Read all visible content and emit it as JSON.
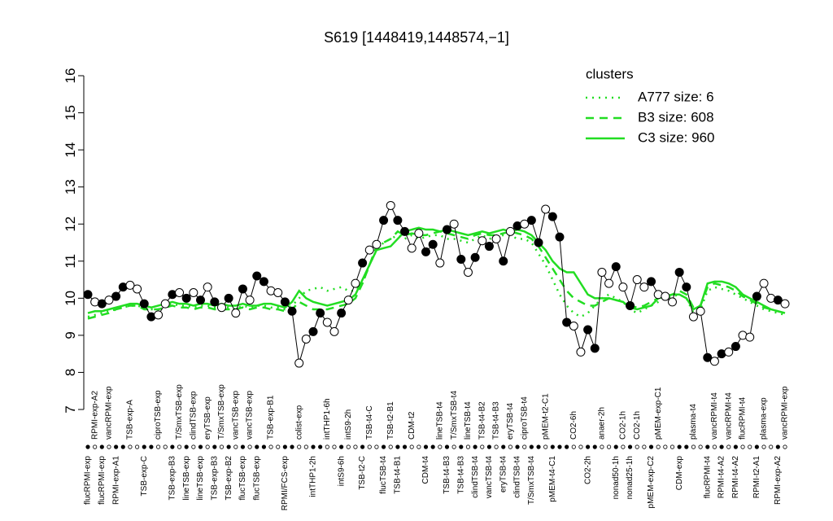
{
  "chart_data": {
    "type": "line",
    "title": "S619 [1448419,1448574,−1]",
    "categories": [
      "flucRPMI-exp",
      "RPMI-exp-A2",
      "flucRPMI-exp",
      "vancRPMI-exp",
      "RPMI-exp-A1",
      null,
      "TSB-exp-A",
      null,
      "TSB-exp-C",
      null,
      "ciproTSB-exp",
      null,
      "TSB-exp-B3",
      "T/SmxTSB-exp",
      "lineTSB-exp",
      "clindTSB-exp",
      "lineTSB-exp",
      "eryTSB-exp",
      "TSB-exp-B3",
      "T/SmxTSB-exp",
      "TSB-exp-B2",
      "vancTSB-exp",
      "flucTSB-exp",
      "vancTSB-exp",
      "flucTSB-exp",
      null,
      "TSB-exp-B1",
      null,
      "RPMI/FCS-exp",
      null,
      "colist-exp",
      null,
      "intTHP1-2h",
      null,
      "intTHP1-6h",
      null,
      "intS9-6h",
      "intS9-2h",
      null,
      "TSB-t2-C",
      "TSB-t4-C",
      null,
      "flucTSB-t4",
      "TSB-t2-B1",
      "TSB-t4-B1",
      null,
      "CDM-t2",
      null,
      "CDM-t4",
      null,
      "lineTSB-t4",
      "TSB-t4-B3",
      "T/SmxTSB-t4",
      "TSB-t4-B3",
      "lineTSB-t4",
      "clindTSB-t4",
      "TSB-t4-B2",
      "vancTSB-t4",
      "TSB-t4-B3",
      "eryTSB-t4",
      "eryTSB-t4",
      "clindTSB-t4",
      "ciproTSB-t4",
      "T/SmxTSB-t4",
      null,
      "pMEM-t2-C1",
      "pMEM-t4-C1",
      null,
      null,
      "CO2-6h",
      null,
      "CO2-2h",
      null,
      "anaer-2h",
      null,
      "nonad50-1h",
      "CO2-1h",
      "nonad25-1h",
      "CO2-1h",
      null,
      "pMEM-exp-C2",
      "pMEM-exp-C1",
      null,
      null,
      "CDM-exp",
      null,
      "plasma-t4",
      null,
      "flucRPMI-t4",
      "vancRPMI-t4",
      "RPMI-t4-A2",
      "vancRPMI-t4",
      "RPMI-t4-A2",
      "flucRPMI-t4",
      null,
      "RPMI-t2-A1",
      "plasma-exp",
      null,
      "RPMI-exp-A2",
      "vancRPMI-exp"
    ],
    "values": [
      10.1,
      9.9,
      9.85,
      9.95,
      10.05,
      10.3,
      10.35,
      10.25,
      9.85,
      9.5,
      9.55,
      9.85,
      10.1,
      10.15,
      10.0,
      10.15,
      9.95,
      10.3,
      9.9,
      9.75,
      10.0,
      9.6,
      10.25,
      9.95,
      10.6,
      10.45,
      10.2,
      10.15,
      9.9,
      9.65,
      8.25,
      8.9,
      9.1,
      9.6,
      9.35,
      9.1,
      9.6,
      9.95,
      10.4,
      10.95,
      11.3,
      11.45,
      12.1,
      12.5,
      12.1,
      11.8,
      11.35,
      11.75,
      11.25,
      11.45,
      10.95,
      11.85,
      12.0,
      11.05,
      10.7,
      11.1,
      11.55,
      11.4,
      11.6,
      11.0,
      11.8,
      11.95,
      12.0,
      12.1,
      11.5,
      12.4,
      12.2,
      11.65,
      9.35,
      9.25,
      8.55,
      9.15,
      8.65,
      10.7,
      10.4,
      10.85,
      10.3,
      9.8,
      10.5,
      10.3,
      10.45,
      10.1,
      10.05,
      9.9,
      10.7,
      10.3,
      9.5,
      9.65,
      8.4,
      8.3,
      8.5,
      8.55,
      8.7,
      9.0,
      8.95,
      10.05,
      10.4,
      10.0,
      9.95,
      9.85
    ],
    "color": "#000000",
    "legend_title": "clusters",
    "legend": "topright",
    "series": [
      {
        "name": "A777 size: 6",
        "color": "#22dd22",
        "style": "dotted",
        "values": [
          9.5,
          9.55,
          9.6,
          9.65,
          9.7,
          9.75,
          9.8,
          9.8,
          9.75,
          9.7,
          9.7,
          9.8,
          9.85,
          9.8,
          9.8,
          9.75,
          9.8,
          9.8,
          9.75,
          9.75,
          9.75,
          9.7,
          9.8,
          9.75,
          9.8,
          9.8,
          9.75,
          9.75,
          9.7,
          9.8,
          10.0,
          10.2,
          10.25,
          10.3,
          10.2,
          10.25,
          10.3,
          10.2,
          10.2,
          10.4,
          10.9,
          11.3,
          11.5,
          11.6,
          11.7,
          11.6,
          11.7,
          11.6,
          11.65,
          11.7,
          11.7,
          11.6,
          11.6,
          11.55,
          11.5,
          11.6,
          11.7,
          11.6,
          11.65,
          11.7,
          11.7,
          11.6,
          11.6,
          11.5,
          11.2,
          10.9,
          10.5,
          10.1,
          9.8,
          9.6,
          9.5,
          9.6,
          9.8,
          10.0,
          10.1,
          10.0,
          9.9,
          9.7,
          9.6,
          9.7,
          9.8,
          9.9,
          10.0,
          10.05,
          10.1,
          10.0,
          9.6,
          9.7,
          10.2,
          10.3,
          10.25,
          10.2,
          10.1,
          10.0,
          9.9,
          9.8,
          9.7,
          9.65,
          9.6,
          9.55
        ]
      },
      {
        "name": "B3 size: 608",
        "color": "#22dd22",
        "style": "dashed",
        "values": [
          9.45,
          9.5,
          9.55,
          9.6,
          9.7,
          9.75,
          9.8,
          9.8,
          9.7,
          9.7,
          9.7,
          9.75,
          9.8,
          9.75,
          9.75,
          9.7,
          9.75,
          9.75,
          9.7,
          9.7,
          9.7,
          9.7,
          9.75,
          9.7,
          9.75,
          9.75,
          9.7,
          9.7,
          9.65,
          9.7,
          9.9,
          9.8,
          9.7,
          9.7,
          9.7,
          9.75,
          9.8,
          9.85,
          10.0,
          10.4,
          10.9,
          11.4,
          11.5,
          11.6,
          11.8,
          11.7,
          11.75,
          11.7,
          11.7,
          11.75,
          11.8,
          11.75,
          11.7,
          11.65,
          11.6,
          11.7,
          11.75,
          11.7,
          11.7,
          11.75,
          11.8,
          11.75,
          11.7,
          11.6,
          11.4,
          11.1,
          10.8,
          10.5,
          10.2,
          10.0,
          9.9,
          9.8,
          9.8,
          9.9,
          10.0,
          9.95,
          9.9,
          9.8,
          9.75,
          9.8,
          9.9,
          10.0,
          10.05,
          10.1,
          10.2,
          10.1,
          9.75,
          9.8,
          10.3,
          10.4,
          10.35,
          10.3,
          10.2,
          10.05,
          9.95,
          9.85,
          9.75,
          9.7,
          9.65,
          9.6
        ]
      },
      {
        "name": "C3 size: 960",
        "color": "#22dd22",
        "style": "solid",
        "values": [
          9.6,
          9.65,
          9.65,
          9.7,
          9.75,
          9.8,
          9.85,
          9.85,
          9.8,
          9.75,
          9.8,
          9.85,
          9.9,
          9.85,
          9.85,
          9.8,
          9.85,
          9.85,
          9.8,
          9.85,
          9.8,
          9.8,
          9.85,
          9.8,
          9.8,
          9.85,
          9.85,
          9.8,
          9.75,
          9.9,
          10.2,
          10.0,
          9.9,
          9.85,
          9.8,
          9.85,
          9.9,
          9.95,
          10.1,
          10.5,
          10.9,
          11.3,
          11.35,
          11.4,
          11.6,
          11.8,
          11.85,
          11.9,
          11.85,
          11.85,
          11.8,
          11.85,
          11.8,
          11.75,
          11.7,
          11.75,
          11.8,
          11.75,
          11.8,
          11.85,
          11.8,
          11.85,
          11.8,
          11.7,
          11.5,
          11.3,
          11.0,
          10.8,
          10.7,
          10.7,
          10.4,
          10.1,
          10.0,
          10.0,
          10.0,
          9.95,
          9.9,
          9.75,
          9.7,
          9.75,
          9.8,
          10.0,
          10.05,
          10.1,
          10.1,
          10.0,
          9.7,
          9.8,
          10.4,
          10.45,
          10.45,
          10.4,
          10.3,
          10.1,
          10.0,
          9.9,
          9.8,
          9.7,
          9.65,
          9.6
        ]
      }
    ],
    "ylim": [
      7,
      16
    ],
    "yticks": [
      7,
      8,
      9,
      10,
      11,
      12,
      13,
      14,
      15,
      16
    ]
  }
}
